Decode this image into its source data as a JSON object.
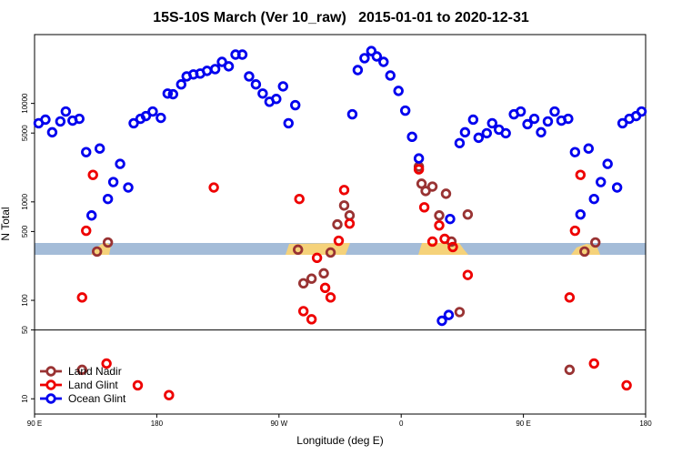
{
  "chart_data": {
    "type": "scatter",
    "title": "15S-10S March (Ver 10_raw)   2015-01-01 to 2020-12-31",
    "xlabel": "Longitude (deg E)",
    "ylabel": "N Total",
    "xlim": [
      90,
      540
    ],
    "xticks": [
      {
        "value": 90,
        "label": "90 E"
      },
      180,
      {
        "value": 270,
        "label": "90 W"
      },
      {
        "value": 360,
        "label": "0"
      },
      {
        "value": 450,
        "label": "90 E"
      },
      {
        "value": 540,
        "label": "180"
      }
    ],
    "ylim": [
      7,
      50000
    ],
    "yscale": "log",
    "yticks": [
      10,
      50,
      100,
      500,
      1000,
      5000,
      10000
    ],
    "hline": 50,
    "legend": "bottomleft",
    "series": [
      {
        "name": "Land Nadir",
        "color": "#993333",
        "x": [
          136,
          144,
          284,
          288,
          294,
          303,
          308,
          313,
          318,
          322,
          373,
          375,
          378,
          383,
          388,
          393,
          397,
          403,
          409,
          125,
          484,
          495,
          503
        ],
        "y": [
          313,
          387,
          327,
          149,
          166,
          188,
          306,
          590,
          919,
          728,
          2280,
          1530,
          1290,
          1430,
          728,
          1210,
          395,
          76,
          745,
          19.7,
          19.7,
          313,
          387
        ]
      },
      {
        "name": "Land Glint",
        "color": "#ee0000",
        "x": [
          125,
          128,
          133,
          143,
          166,
          189,
          222,
          285,
          288,
          294,
          298,
          304,
          308,
          314,
          318,
          322,
          373,
          377,
          383,
          388,
          392,
          398,
          409,
          484,
          488,
          492,
          502,
          526
        ],
        "y": [
          107,
          509,
          1880,
          22.8,
          13.7,
          10.9,
          1400,
          1070,
          77.6,
          64.2,
          270,
          134,
          107,
          403,
          1320,
          602,
          2140,
          881,
          395,
          577,
          421,
          348,
          181,
          107,
          509,
          1880,
          22.8,
          13.7
        ]
      },
      {
        "name": "Ocean Glint",
        "color": "#0000ee",
        "x": [
          93,
          98,
          103,
          109,
          113,
          118,
          123,
          128,
          132,
          138,
          144,
          148,
          153,
          159,
          163,
          168,
          172,
          177,
          183,
          188,
          192,
          198,
          202,
          207,
          212,
          217,
          223,
          228,
          233,
          238,
          243,
          248,
          253,
          258,
          263,
          268,
          273,
          277,
          282,
          324,
          328,
          333,
          338,
          342,
          347,
          352,
          358,
          363,
          368,
          373,
          390,
          395,
          396,
          403,
          407,
          413,
          417,
          423,
          427,
          432,
          437,
          443,
          448,
          453,
          458,
          463,
          468,
          473,
          478,
          483,
          488,
          492,
          498,
          502,
          507,
          512,
          519,
          523,
          528,
          533,
          537
        ],
        "y": [
          6290,
          6840,
          5090,
          6560,
          8270,
          6690,
          6980,
          3200,
          728,
          3480,
          1070,
          1590,
          2430,
          1400,
          6290,
          6980,
          7440,
          8270,
          7130,
          12600,
          12400,
          15600,
          18800,
          19700,
          20100,
          21400,
          22300,
          26400,
          23800,
          31300,
          31300,
          18800,
          15600,
          12600,
          10400,
          11100,
          14900,
          6290,
          9600,
          7760,
          21800,
          28800,
          34000,
          30000,
          26400,
          19200,
          13400,
          8450,
          4580,
          2760,
          62,
          71,
          670,
          3950,
          5090,
          6840,
          4480,
          4980,
          6290,
          5420,
          4980,
          7760,
          8270,
          6150,
          6980,
          5090,
          6560,
          8270,
          6690,
          6980,
          3200,
          745,
          3480,
          1070,
          1590,
          2430,
          1400,
          6290,
          6980,
          7440,
          8270
        ]
      }
    ]
  }
}
